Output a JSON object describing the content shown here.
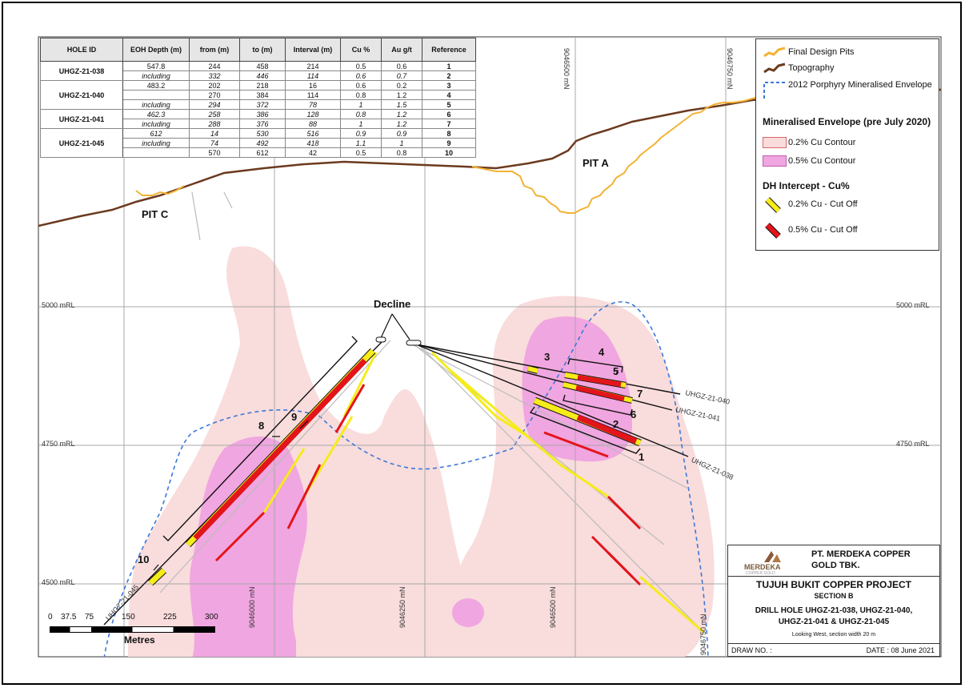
{
  "table": {
    "headers": [
      "HOLE ID",
      "EOH Depth (m)",
      "from (m)",
      "to (m)",
      "Interval (m)",
      "Cu %",
      "Au g/t",
      "Reference"
    ],
    "groups": [
      {
        "hole": "UHGZ-21-038",
        "rows": [
          {
            "eoh": "547.8",
            "from": "244",
            "to": "458",
            "interval": "214",
            "cu": "0.5",
            "au": "0.6",
            "ref": "1",
            "italic": false
          },
          {
            "eoh": "including",
            "from": "332",
            "to": "446",
            "interval": "114",
            "cu": "0.6",
            "au": "0.7",
            "ref": "2",
            "italic": true
          }
        ]
      },
      {
        "hole": "UHGZ-21-040",
        "rows": [
          {
            "eoh": "483.2",
            "from": "202",
            "to": "218",
            "interval": "16",
            "cu": "0.6",
            "au": "0.2",
            "ref": "3",
            "italic": false
          },
          {
            "eoh": "",
            "from": "270",
            "to": "384",
            "interval": "114",
            "cu": "0.8",
            "au": "1.2",
            "ref": "4",
            "italic": false
          },
          {
            "eoh": "including",
            "from": "294",
            "to": "372",
            "interval": "78",
            "cu": "1",
            "au": "1.5",
            "ref": "5",
            "italic": true
          }
        ]
      },
      {
        "hole": "UHGZ-21-041",
        "rows": [
          {
            "eoh": "462.3",
            "from": "258",
            "to": "386",
            "interval": "128",
            "cu": "0.8",
            "au": "1.2",
            "ref": "6",
            "italic": true
          },
          {
            "eoh": "including",
            "from": "288",
            "to": "376",
            "interval": "88",
            "cu": "1",
            "au": "1.2",
            "ref": "7",
            "italic": true
          }
        ]
      },
      {
        "hole": "UHGZ-21-045",
        "rows": [
          {
            "eoh": "612",
            "from": "14",
            "to": "530",
            "interval": "516",
            "cu": "0.9",
            "au": "0.9",
            "ref": "8",
            "italic": true
          },
          {
            "eoh": "including",
            "from": "74",
            "to": "492",
            "interval": "418",
            "cu": "1.1",
            "au": "1",
            "ref": "9",
            "italic": true
          },
          {
            "eoh": "",
            "from": "570",
            "to": "612",
            "interval": "42",
            "cu": "0.5",
            "au": "0.8",
            "ref": "10",
            "italic": false
          }
        ]
      }
    ]
  },
  "legend": {
    "final_design_pits": "Final Design Pits",
    "topography": "Topography",
    "porphyry_envelope": "2012 Porphyry Mineralised Envelope",
    "envelope_header": "Mineralised Envelope (pre July 2020)",
    "contour_02": "0.2% Cu Contour",
    "contour_05": "0.5% Cu Contour",
    "intercept_header": "DH Intercept - Cu%",
    "cutoff_02": "0.2% Cu - Cut Off",
    "cutoff_05": "0.5% Cu - Cut Off"
  },
  "colors": {
    "pit": "#f2b233",
    "topography": "#6b3a1f",
    "envelope": "#3c78d8",
    "contour_02": "#f9dcdc",
    "contour_05": "#f0a6e0",
    "cutoff_02": "#f5ec1a",
    "cutoff_05": "#e4141b"
  },
  "map": {
    "pit_a": "PIT A",
    "pit_c": "PIT C",
    "decline": "Decline",
    "rl_labels": [
      "5000 mRL",
      "4750 mRL",
      "4500 mRL"
    ],
    "northings": [
      "9046000 mN",
      "9046250 mN",
      "9046500 mN",
      "9046750 mN"
    ],
    "top_northings": [
      "9046500 mN",
      "9046750 mN"
    ],
    "holes": [
      "UHGZ-21-040",
      "UHGZ-21-041",
      "UHGZ-21-038",
      "UHGZ-21-045"
    ],
    "refs": [
      "1",
      "2",
      "3",
      "4",
      "5",
      "6",
      "7",
      "8",
      "9",
      "10"
    ]
  },
  "scale": {
    "ticks": [
      "0",
      "37.5",
      "75",
      "150",
      "225",
      "300"
    ],
    "unit": "Metres"
  },
  "title_block": {
    "company": "PT. MERDEKA COPPER GOLD TBK.",
    "logo_text": "MERDEKA",
    "logo_sub": "COPPER GOLD",
    "project": "TUJUH BUKIT COPPER PROJECT",
    "section": "SECTION B",
    "drill_line1": "DRILL HOLE UHGZ-21-038, UHGZ-21-040,",
    "drill_line2": "UHGZ-21-041 & UHGZ-21-045",
    "view": "Looking West, section width 20 m",
    "draw_no": "DRAW NO. :",
    "date": "DATE : 08 June 2021"
  }
}
